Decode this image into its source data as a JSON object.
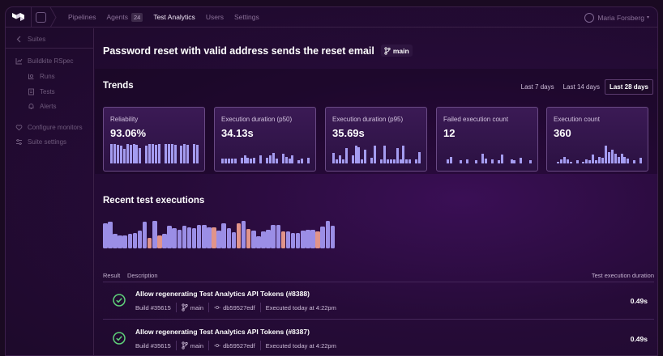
{
  "nav": {
    "items": [
      {
        "label": "Pipelines",
        "active": false
      },
      {
        "label": "Agents",
        "active": false,
        "badge": "24"
      },
      {
        "label": "Test Analytics",
        "active": true
      },
      {
        "label": "Users",
        "active": false
      },
      {
        "label": "Settings",
        "active": false
      }
    ],
    "user": "Maria Forsberg"
  },
  "sidebar": {
    "back_label": "Suites",
    "suite_name": "Buildkite RSpec",
    "items": [
      "Runs",
      "Tests",
      "Alerts"
    ],
    "configure_monitors": "Configure monitors",
    "suite_settings": "Suite settings"
  },
  "page": {
    "title": "Password reset with valid address sends the reset email",
    "branch": "main"
  },
  "trends": {
    "title": "Trends",
    "ranges": [
      "Last 7 days",
      "Last 14 days",
      "Last 28 days"
    ],
    "active_range": "Last 28 days",
    "bar_color": "#a49cf0",
    "cards": [
      {
        "label": "Reliability",
        "value": "93.06%",
        "spark": [
          1,
          1,
          0.95,
          0.9,
          0.75,
          1,
          0.95,
          1,
          0.95,
          0.8,
          0,
          0.9,
          1,
          1,
          0.95,
          1,
          0,
          1,
          1,
          1,
          0.95,
          0,
          0.9,
          1,
          0.95,
          0,
          1,
          0.95
        ]
      },
      {
        "label": "Execution duration (p50)",
        "value": "34.13s",
        "spark": [
          0.25,
          0.25,
          0.25,
          0.25,
          0.25,
          0,
          0.3,
          0.4,
          0.3,
          0.25,
          0.3,
          0,
          0.4,
          0,
          0.3,
          0.4,
          0.55,
          0.25,
          0,
          0.5,
          0.35,
          0.25,
          0.4,
          0,
          0.15,
          0.25,
          0,
          0.3
        ]
      },
      {
        "label": "Execution duration (p95)",
        "value": "35.69s",
        "spark": [
          0.55,
          0.2,
          0.4,
          0.2,
          0.8,
          0,
          0.4,
          0.9,
          0.85,
          0.2,
          0.7,
          0,
          0.3,
          0.9,
          0,
          0.2,
          0.9,
          0.2,
          0.2,
          0.2,
          0.8,
          0.2,
          0.9,
          0.2,
          0.2,
          0,
          0.2,
          0.6
        ]
      },
      {
        "label": "Failed execution count",
        "value": "12",
        "spark": [
          0,
          0.2,
          0.35,
          0,
          0,
          0.15,
          0,
          0.2,
          0,
          0,
          0.15,
          0,
          0.5,
          0.25,
          0,
          0.2,
          0,
          0.15,
          0.45,
          0,
          0,
          0.2,
          0.15,
          0,
          0.3,
          0,
          0,
          0.15
        ]
      },
      {
        "label": "Execution count",
        "value": "360",
        "spark": [
          0,
          0.1,
          0.2,
          0.35,
          0.2,
          0.1,
          0,
          0.15,
          0,
          0.1,
          0.2,
          0.15,
          0.45,
          0.15,
          0.35,
          0.3,
          0.9,
          0.6,
          0.7,
          0.5,
          0.35,
          0.5,
          0.35,
          0.25,
          0,
          0.15,
          0,
          0.3
        ]
      }
    ]
  },
  "recent": {
    "title": "Recent test executions",
    "colors": {
      "passed": "#9b8ee6",
      "failed": "#e1948a"
    },
    "durations": [
      0.75,
      0.78,
      0.43,
      0.38,
      0.38,
      0.42,
      0.45,
      0.52,
      0.78,
      0.32,
      0.8,
      0.38,
      0.44,
      0.66,
      0.6,
      0.55,
      0.66,
      0.61,
      0.6,
      0.68,
      0.7,
      0.61,
      0.62,
      0.53,
      0.74,
      0.59,
      0.48,
      0.74,
      0.8,
      0.58,
      0.52,
      0.35,
      0.51,
      0.55,
      0.7,
      0.68,
      0.49,
      0.5,
      0.46,
      0.45,
      0.52,
      0.54,
      0.55,
      0.51,
      0.64,
      0.82,
      0.66
    ],
    "failed": [
      9,
      11,
      22,
      27,
      29,
      36,
      43
    ]
  },
  "table": {
    "col_result": "Result",
    "col_description": "Description",
    "col_duration": "Test execution duration",
    "rows": [
      {
        "title": "Allow regenerating Test Analytics API Tokens (#8388)",
        "build": "Build #35615",
        "branch": "main",
        "commit": "db59527edf",
        "time": "Executed today at 4:22pm",
        "duration": "0.49s"
      },
      {
        "title": "Allow regenerating Test Analytics API Tokens (#8387)",
        "build": "Build #35615",
        "branch": "main",
        "commit": "db59527edf",
        "time": "Executed today at 4:22pm",
        "duration": "0.49s"
      }
    ]
  }
}
